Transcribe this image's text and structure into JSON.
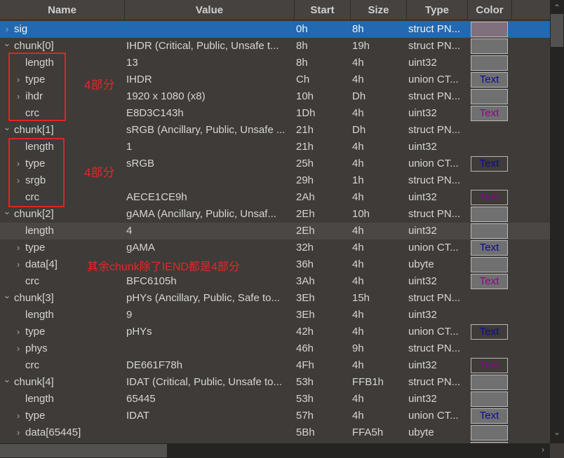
{
  "columns": [
    "Name",
    "Value",
    "Start",
    "Size",
    "Type",
    "Color"
  ],
  "colors": {
    "selected": "#2169b0",
    "swatch_gray": "#707070",
    "swatch_pink": "#80707e",
    "text_blue": "#0c0c8c",
    "text_purple": "#820a86",
    "annotation": "#e02424"
  },
  "rows": [
    {
      "name": "sig",
      "indent": 0,
      "exp": ">",
      "value": "",
      "start": "0h",
      "size": "8h",
      "type": "struct PN...",
      "sw": "pink",
      "swtext": "",
      "state": "sel"
    },
    {
      "name": "chunk[0]",
      "indent": 0,
      "exp": "v",
      "value": "IHDR  (Critical, Public, Unsafe t...",
      "start": "8h",
      "size": "19h",
      "type": "struct PN...",
      "sw": "gray",
      "swtext": ""
    },
    {
      "name": "length",
      "indent": 1,
      "exp": "",
      "value": "13",
      "start": "8h",
      "size": "4h",
      "type": "uint32",
      "sw": "gray",
      "swtext": ""
    },
    {
      "name": "type",
      "indent": 1,
      "exp": ">",
      "value": "IHDR",
      "start": "Ch",
      "size": "4h",
      "type": "union CT...",
      "sw": "gray",
      "swtext": "Text",
      "tc": "blue"
    },
    {
      "name": "ihdr",
      "indent": 1,
      "exp": ">",
      "value": "1920 x 1080 (x8)",
      "start": "10h",
      "size": "Dh",
      "type": "struct PN...",
      "sw": "gray",
      "swtext": ""
    },
    {
      "name": "crc",
      "indent": 1,
      "exp": "",
      "value": "E8D3C143h",
      "start": "1Dh",
      "size": "4h",
      "type": "uint32",
      "sw": "gray",
      "swtext": "Text",
      "tc": "purple"
    },
    {
      "name": "chunk[1]",
      "indent": 0,
      "exp": "v",
      "value": "sRGB  (Ancillary, Public, Unsafe ...",
      "start": "21h",
      "size": "Dh",
      "type": "struct PN...",
      "sw": "",
      "swtext": ""
    },
    {
      "name": "length",
      "indent": 1,
      "exp": "",
      "value": "1",
      "start": "21h",
      "size": "4h",
      "type": "uint32",
      "sw": "",
      "swtext": ""
    },
    {
      "name": "type",
      "indent": 1,
      "exp": ">",
      "value": "sRGB",
      "start": "25h",
      "size": "4h",
      "type": "union CT...",
      "sw": "outline",
      "swtext": "Text",
      "tc": "blue"
    },
    {
      "name": "srgb",
      "indent": 1,
      "exp": ">",
      "value": "",
      "start": "29h",
      "size": "1h",
      "type": "struct PN...",
      "sw": "",
      "swtext": ""
    },
    {
      "name": "crc",
      "indent": 1,
      "exp": "",
      "value": "AECE1CE9h",
      "start": "2Ah",
      "size": "4h",
      "type": "uint32",
      "sw": "outline",
      "swtext": "Text",
      "tc": "purple"
    },
    {
      "name": "chunk[2]",
      "indent": 0,
      "exp": "v",
      "value": "gAMA  (Ancillary, Public, Unsaf...",
      "start": "2Eh",
      "size": "10h",
      "type": "struct PN...",
      "sw": "gray",
      "swtext": ""
    },
    {
      "name": "length",
      "indent": 1,
      "exp": "",
      "value": "4",
      "start": "2Eh",
      "size": "4h",
      "type": "uint32",
      "sw": "gray",
      "swtext": "",
      "state": "hover"
    },
    {
      "name": "type",
      "indent": 1,
      "exp": ">",
      "value": "gAMA",
      "start": "32h",
      "size": "4h",
      "type": "union CT...",
      "sw": "gray",
      "swtext": "Text",
      "tc": "blue"
    },
    {
      "name": "data[4]",
      "indent": 1,
      "exp": ">",
      "value": "",
      "start": "36h",
      "size": "4h",
      "type": "ubyte",
      "sw": "gray",
      "swtext": ""
    },
    {
      "name": "crc",
      "indent": 1,
      "exp": "",
      "value": "BFC6105h",
      "start": "3Ah",
      "size": "4h",
      "type": "uint32",
      "sw": "gray",
      "swtext": "Text",
      "tc": "purple"
    },
    {
      "name": "chunk[3]",
      "indent": 0,
      "exp": "v",
      "value": "pHYs  (Ancillary, Public, Safe to...",
      "start": "3Eh",
      "size": "15h",
      "type": "struct PN...",
      "sw": "",
      "swtext": ""
    },
    {
      "name": "length",
      "indent": 1,
      "exp": "",
      "value": "9",
      "start": "3Eh",
      "size": "4h",
      "type": "uint32",
      "sw": "",
      "swtext": ""
    },
    {
      "name": "type",
      "indent": 1,
      "exp": ">",
      "value": "pHYs",
      "start": "42h",
      "size": "4h",
      "type": "union CT...",
      "sw": "outline",
      "swtext": "Text",
      "tc": "blue"
    },
    {
      "name": "phys",
      "indent": 1,
      "exp": ">",
      "value": "",
      "start": "46h",
      "size": "9h",
      "type": "struct PN...",
      "sw": "",
      "swtext": ""
    },
    {
      "name": "crc",
      "indent": 1,
      "exp": "",
      "value": "DE661F78h",
      "start": "4Fh",
      "size": "4h",
      "type": "uint32",
      "sw": "outline",
      "swtext": "Text",
      "tc": "purple"
    },
    {
      "name": "chunk[4]",
      "indent": 0,
      "exp": "v",
      "value": "IDAT  (Critical, Public, Unsafe to...",
      "start": "53h",
      "size": "FFB1h",
      "type": "struct PN...",
      "sw": "gray",
      "swtext": ""
    },
    {
      "name": "length",
      "indent": 1,
      "exp": "",
      "value": "65445",
      "start": "53h",
      "size": "4h",
      "type": "uint32",
      "sw": "gray",
      "swtext": ""
    },
    {
      "name": "type",
      "indent": 1,
      "exp": ">",
      "value": "IDAT",
      "start": "57h",
      "size": "4h",
      "type": "union CT...",
      "sw": "gray",
      "swtext": "Text",
      "tc": "blue"
    },
    {
      "name": "data[65445]",
      "indent": 1,
      "exp": ">",
      "value": "",
      "start": "5Bh",
      "size": "FFA5h",
      "type": "ubyte",
      "sw": "gray",
      "swtext": ""
    },
    {
      "name": "",
      "indent": 1,
      "exp": "",
      "value": "",
      "start": "",
      "size": "",
      "type": "",
      "sw": "gray",
      "swtext": ""
    }
  ],
  "annotations": {
    "note1": "4部分",
    "note2": "4部分",
    "note3": "其余chunk除了IEND都是4部分"
  }
}
